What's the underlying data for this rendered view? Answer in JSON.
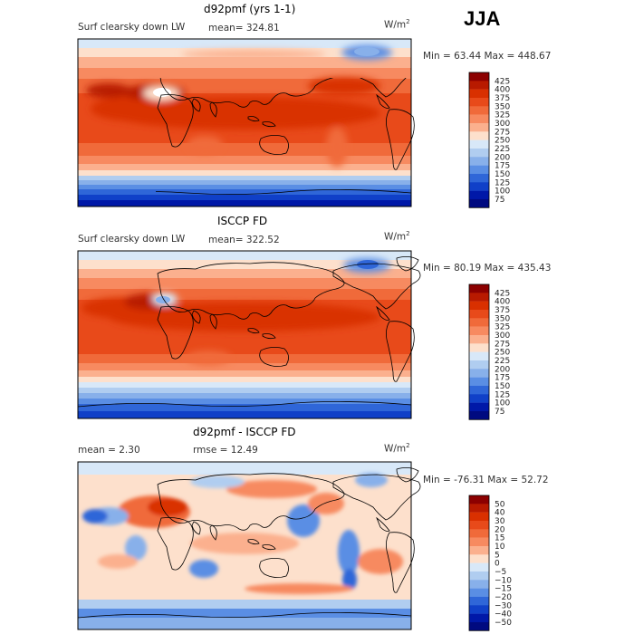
{
  "season": "JJA",
  "units_label": "W/m",
  "units_exp": "2",
  "chart_data": [
    {
      "type": "heatmap",
      "title": "d92pmf (yrs 1-1)",
      "subtitle": "Surf clearsky down LW",
      "stat_text": "mean= 324.81",
      "minmax_text": "Min =  63.44 Max = 448.67",
      "colorbar_levels": [
        "425",
        "400",
        "375",
        "350",
        "325",
        "300",
        "275",
        "250",
        "225",
        "200",
        "175",
        "150",
        "125",
        "100",
        "75"
      ],
      "colorbar_colors": [
        "#8c0000",
        "#b81a00",
        "#d93000",
        "#e84a1a",
        "#f06a3a",
        "#f78a60",
        "#fbb08e",
        "#fde0cc",
        "#d8e8f8",
        "#b0cdf0",
        "#88b0ea",
        "#5a8ee4",
        "#2f66d8",
        "#1040c8",
        "#0018a8",
        "#000a80"
      ],
      "min": 63.44,
      "max": 448.67,
      "mean": 324.81
    },
    {
      "type": "heatmap",
      "title": "ISCCP FD",
      "subtitle": "Surf clearsky down LW",
      "stat_text": "mean= 322.52",
      "minmax_text": "Min =  80.19 Max = 435.43",
      "colorbar_levels": [
        "425",
        "400",
        "375",
        "350",
        "325",
        "300",
        "275",
        "250",
        "225",
        "200",
        "175",
        "150",
        "125",
        "100",
        "75"
      ],
      "colorbar_colors": [
        "#8c0000",
        "#b81a00",
        "#d93000",
        "#e84a1a",
        "#f06a3a",
        "#f78a60",
        "#fbb08e",
        "#fde0cc",
        "#d8e8f8",
        "#b0cdf0",
        "#88b0ea",
        "#5a8ee4",
        "#2f66d8",
        "#1040c8",
        "#0018a8",
        "#000a80"
      ],
      "min": 80.19,
      "max": 435.43,
      "mean": 322.52
    },
    {
      "type": "heatmap",
      "title": "d92pmf - ISCCP FD",
      "stat_text": "mean =    2.30",
      "stat2_text": "rmse =   12.49",
      "minmax_text": "Min = -76.31 Max =  52.72",
      "colorbar_levels": [
        "50",
        "40",
        "30",
        "20",
        "15",
        "10",
        "5",
        "0",
        "−5",
        "−10",
        "−15",
        "−20",
        "−30",
        "−40",
        "−50"
      ],
      "colorbar_colors": [
        "#8c0000",
        "#b81a00",
        "#d93000",
        "#e84a1a",
        "#f06a3a",
        "#f78a60",
        "#fbb08e",
        "#fde0cc",
        "#d8e8f8",
        "#b0cdf0",
        "#88b0ea",
        "#5a8ee4",
        "#2f66d8",
        "#1040c8",
        "#0018a8",
        "#000a80"
      ],
      "min": -76.31,
      "max": 52.72,
      "mean": 2.3,
      "rmse": 12.49
    }
  ]
}
